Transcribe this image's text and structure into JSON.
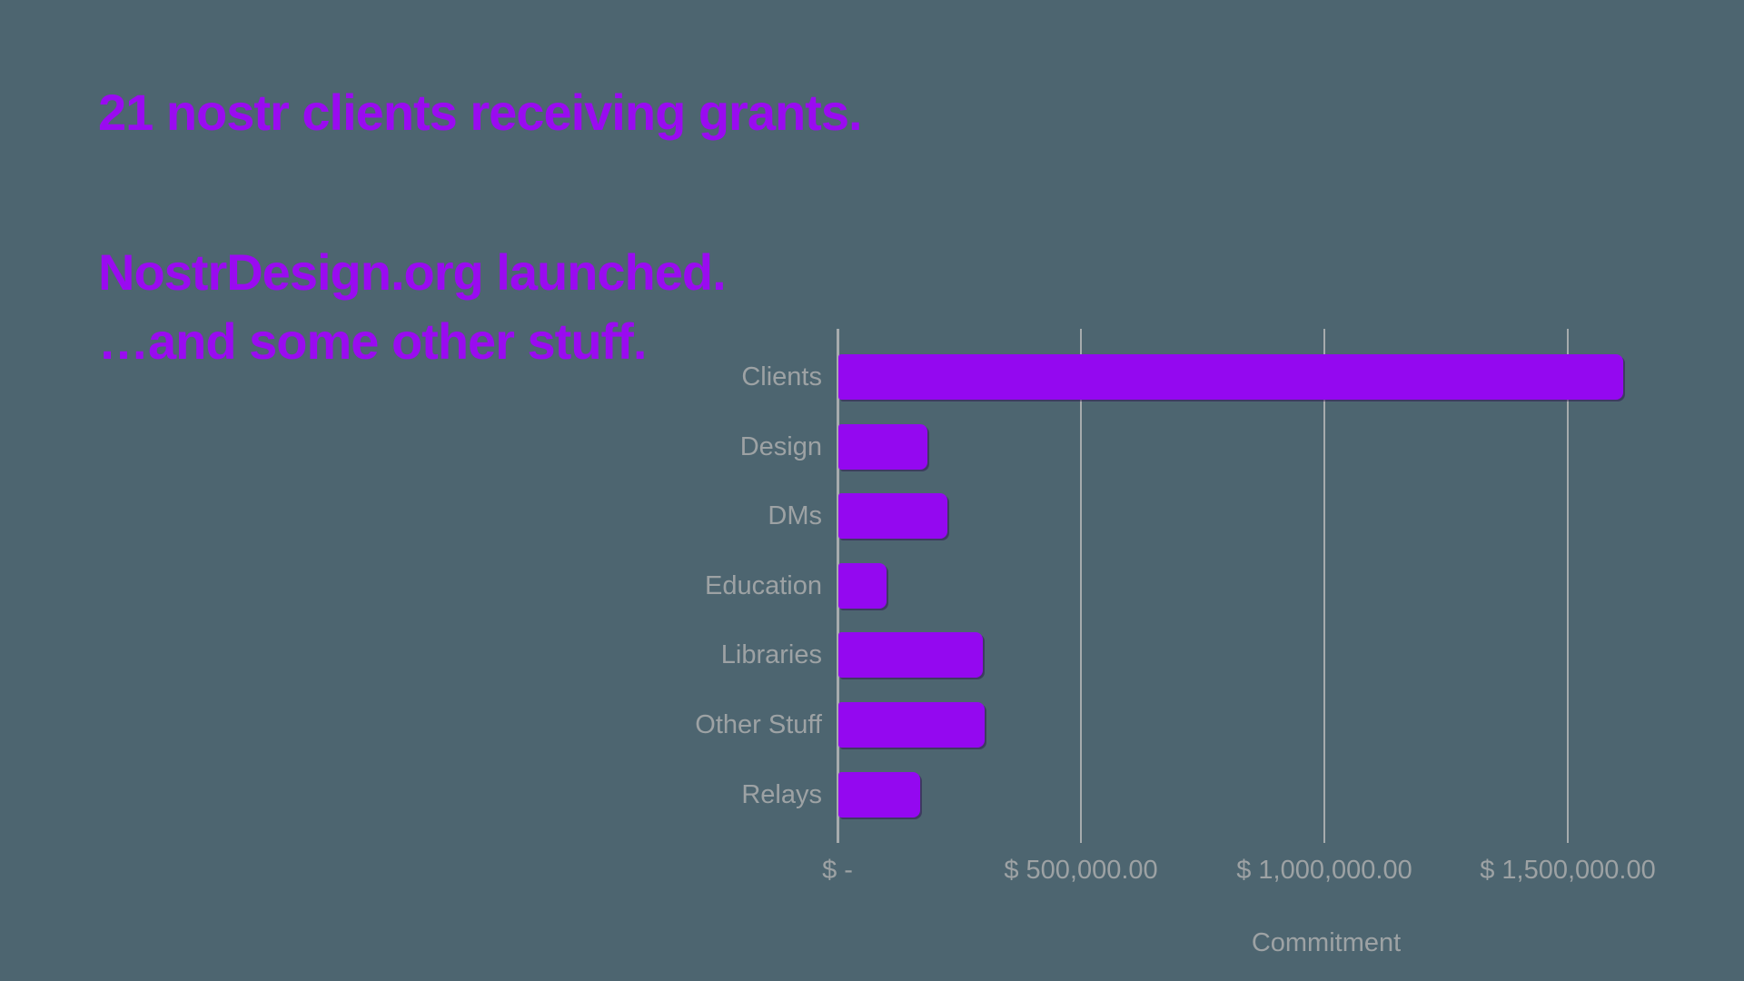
{
  "slide": {
    "background_color": "#4D6570",
    "accent_color": "#9A0BF0",
    "text_color": "#9DA2A4",
    "headings": {
      "line1": "21 nostr clients receiving grants.",
      "line2": "NostrDesign.org launched.",
      "line3": "…and some other stuff."
    }
  },
  "chart_data": {
    "type": "bar",
    "orientation": "horizontal",
    "title": "",
    "categories": [
      "Clients",
      "Design",
      "DMs",
      "Education",
      "Libraries",
      "Other Stuff",
      "Relays"
    ],
    "values": [
      1612000,
      183000,
      224000,
      99000,
      297000,
      300000,
      168000
    ],
    "xlabel": "Commitment",
    "ylabel": "",
    "x_ticks": [
      {
        "value": 0,
        "label": "$ -"
      },
      {
        "value": 500000,
        "label": "$ 500,000.00"
      },
      {
        "value": 1000000,
        "label": "$ 1,000,000.00"
      },
      {
        "value": 1500000,
        "label": "$ 1,500,000.00"
      }
    ],
    "xlim": [
      0,
      1640000
    ],
    "grid": true,
    "legend": false,
    "bar_color": "#9408F0",
    "gridline_color": "#A6ABAD",
    "label_color": "#9DA2A4",
    "currency": "USD"
  }
}
